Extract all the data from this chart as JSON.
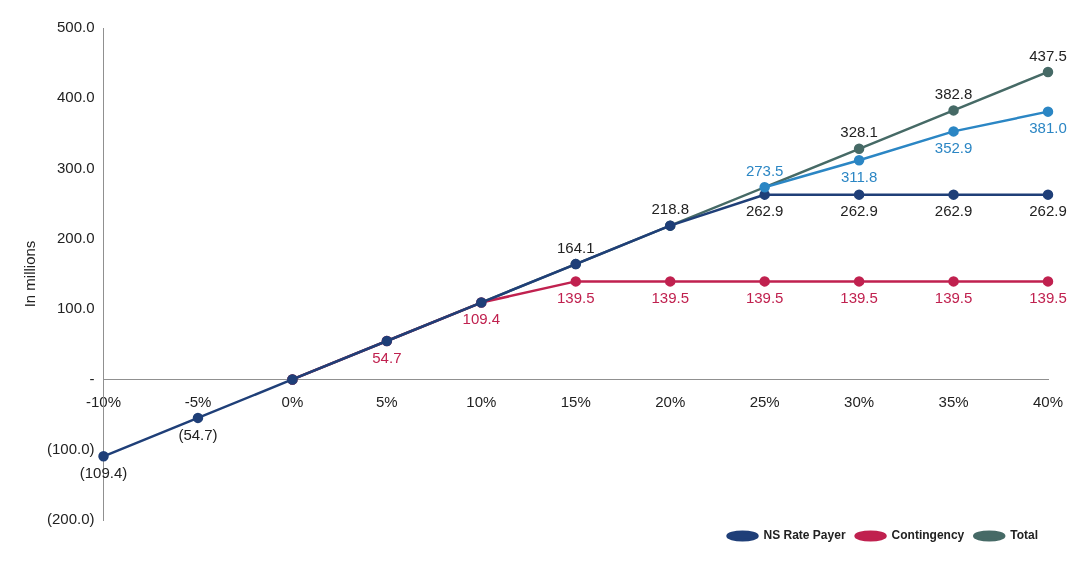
{
  "chart_data": {
    "type": "line",
    "ylabel": "In millions",
    "categories": [
      "-10%",
      "-5%",
      "0%",
      "5%",
      "10%",
      "15%",
      "20%",
      "25%",
      "30%",
      "35%",
      "40%"
    ],
    "series": [
      {
        "name": "Total",
        "color": "#466a66",
        "values": [
          null,
          null,
          0,
          null,
          null,
          164.1,
          218.8,
          null,
          328.1,
          382.8,
          437.5
        ],
        "value_labels": [
          null,
          null,
          null,
          null,
          null,
          "164.1",
          "218.8",
          null,
          "328.1",
          "382.8",
          "437.5"
        ]
      },
      {
        "name": "Contingency",
        "color": "#c0214f",
        "values": [
          null,
          null,
          0,
          54.7,
          109.4,
          139.5,
          139.5,
          139.5,
          139.5,
          139.5,
          139.5
        ],
        "value_labels": [
          null,
          null,
          null,
          "54.7",
          "109.4",
          "139.5",
          "139.5",
          "139.5",
          "139.5",
          "139.5",
          "139.5"
        ]
      },
      {
        "name": "NS Rate Payer",
        "color": "#1f3f78",
        "values": [
          -109.4,
          -54.7,
          0,
          54.7,
          109.4,
          164.1,
          218.8,
          262.9,
          262.9,
          262.9,
          262.9
        ],
        "value_labels": [
          "(109.4)",
          "(54.7)",
          null,
          null,
          null,
          null,
          null,
          "262.9",
          "262.9",
          "262.9",
          "262.9"
        ]
      },
      {
        "color": "#2b86c4",
        "values": [
          null,
          null,
          null,
          null,
          null,
          null,
          null,
          273.5,
          311.8,
          352.9,
          381.0
        ],
        "value_labels": [
          null,
          null,
          null,
          null,
          null,
          null,
          null,
          "273.5",
          "311.8",
          "352.9",
          "381.0"
        ]
      }
    ],
    "ylim": [
      -200,
      500
    ],
    "yticks": [
      {
        "value": -200,
        "label": "(200.0)"
      },
      {
        "value": -100,
        "label": "(100.0)"
      },
      {
        "value": 0,
        "label": "-"
      },
      {
        "value": 100,
        "label": "100.0"
      },
      {
        "value": 200,
        "label": "200.0"
      },
      {
        "value": 300,
        "label": "300.0"
      },
      {
        "value": 400,
        "label": "400.0"
      },
      {
        "value": 500,
        "label": "500.0"
      }
    ],
    "grid": false,
    "legend": "bottom right",
    "marker": "circle",
    "line_style": "solid"
  }
}
